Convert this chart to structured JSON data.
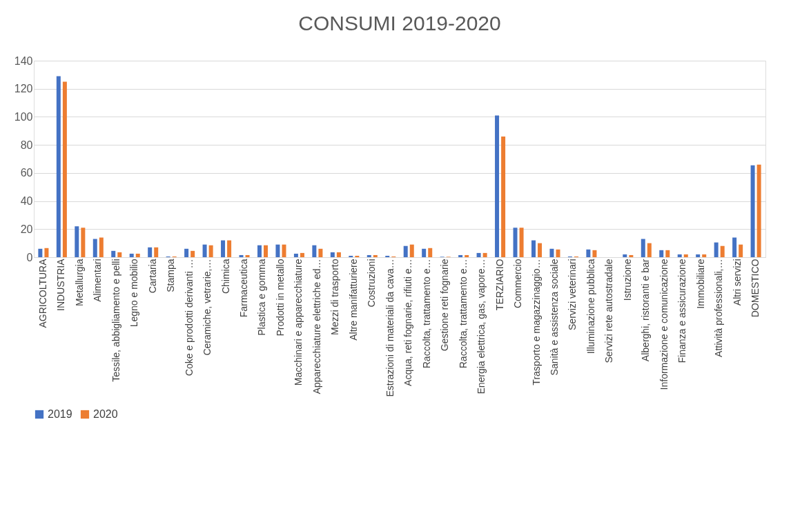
{
  "chart_data": {
    "type": "bar",
    "title": "CONSUMI 2019-2020",
    "categories": [
      "AGRICOLTURA",
      "INDUSTRIA",
      "Metallurgia",
      "Alimentari",
      "Tessile, abbigliamento e pelli",
      "Legno e mobilio",
      "Cartaria",
      "Stampa",
      "Coke e prodotti derivanti …",
      "Ceramiche, vetrarie,…",
      "Chimica",
      "Farmaceutica",
      "Plastica e gomma",
      "Prodotti in metallo",
      "Macchinari e apparecchiature",
      "Apparecchiature elettriche ed…",
      "Mezzi di trasporto",
      "Altre manifatturiere",
      "Costruzioni",
      "Estrazioni di materiali da cava…",
      "Acqua, reti fognarie, rifiuti e…",
      "Raccolta, trattamento e…",
      "Gestione reti fognarie",
      "Raccolta, trattamento e…",
      "Energia elettrica, gas, vapore…",
      "TERZIARIO",
      "Commercio",
      "Trasporto e magazzinaggio…",
      "Sanità e assistenza sociale",
      "Servizi veterinari",
      "Illuminazione pubblica",
      "Servizi rete autostradale",
      "Istruzione",
      "Alberghi, ristoranti e bar",
      "Informazione e comunicazione",
      "Finanza e assicurazione",
      "Immobiliare",
      "Attività professionali,…",
      "Altri servizi",
      "DOMESTICO"
    ],
    "series": [
      {
        "name": "2019",
        "color": "#4472c4",
        "values": [
          6,
          129,
          22,
          13,
          4.5,
          2.5,
          7,
          0.5,
          6,
          9,
          12,
          1.5,
          8.5,
          9,
          2.5,
          8.5,
          3.5,
          1,
          1.5,
          1,
          8,
          6,
          0.3,
          1.5,
          3,
          101,
          21,
          12,
          6,
          0.5,
          5.5,
          null,
          2,
          13,
          5,
          2,
          2,
          10.5,
          14,
          65.5
        ]
      },
      {
        "name": "2020",
        "color": "#ed7d31",
        "values": [
          6.5,
          125,
          21,
          14,
          3.5,
          2.5,
          7,
          0.5,
          4.5,
          8.5,
          12,
          1.5,
          8.5,
          9,
          3,
          6,
          3.5,
          1,
          1.5,
          0.5,
          9,
          6.5,
          0.3,
          1.5,
          3,
          86,
          21,
          10,
          5.5,
          0.5,
          5,
          null,
          1.5,
          10,
          5,
          2,
          2,
          8,
          9,
          66
        ]
      }
    ],
    "ylim": [
      0,
      140
    ],
    "yticks": [
      0,
      20,
      40,
      60,
      80,
      100,
      120,
      140
    ],
    "grid": "y",
    "legend": "bottom"
  }
}
